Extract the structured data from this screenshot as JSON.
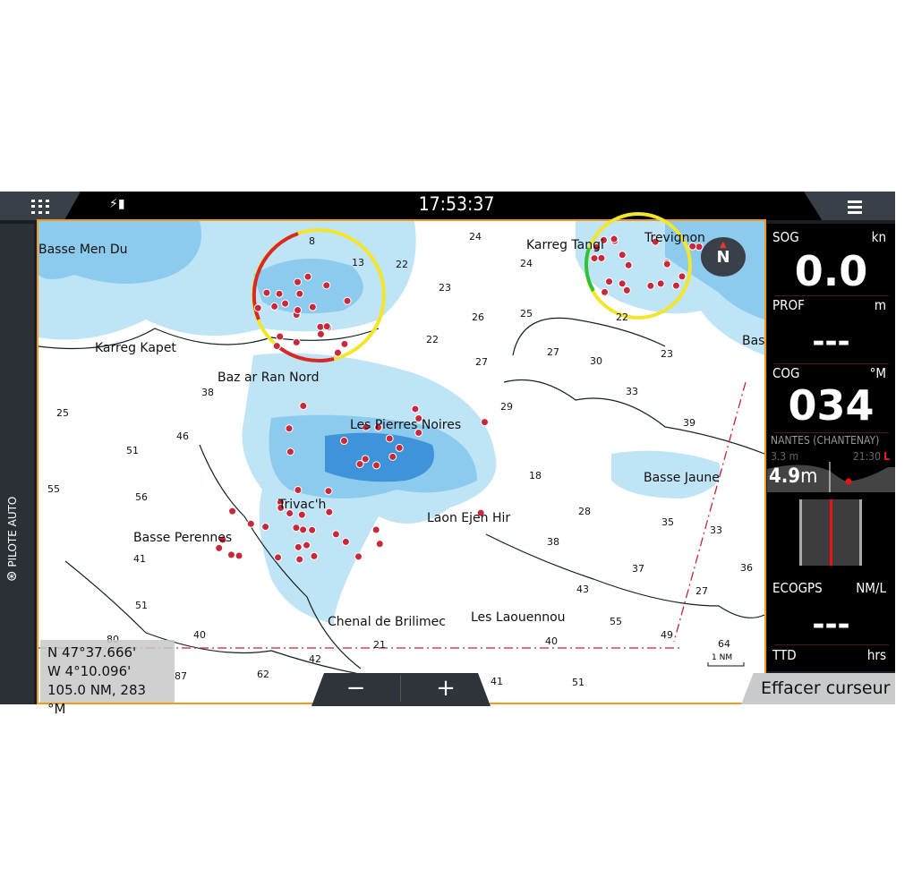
{
  "topbar": {
    "time": "17:53:37",
    "apps_icon": "grid-icon",
    "signal_icon": "satellite-signal-icon",
    "menu_icon": "hamburger-icon"
  },
  "leftpanel": {
    "autopilot_label": "PILOTE AUTO",
    "autopilot_icon": "steering-wheel-icon"
  },
  "map": {
    "compass_label": "N",
    "place_names": [
      "Basse Men Du",
      "Karreg Kapet",
      "Baz ar Ran Nord",
      "Les Pierres Noires",
      "Trivac'h",
      "Laon Ejen Hir",
      "Basse Perennes",
      "Chenal de Brilimec",
      "Les Laouennou",
      "Basse Jaune",
      "Karreg Tangi",
      "Trevignon",
      "Bas"
    ],
    "soundings": [
      "8",
      "13",
      "22",
      "24",
      "24",
      "23",
      "26",
      "25",
      "22",
      "27",
      "27",
      "30",
      "23",
      "33",
      "29",
      "38",
      "46",
      "25",
      "51",
      "55",
      "56",
      "39",
      "18",
      "28",
      "35",
      "33",
      "38",
      "41",
      "37",
      "43",
      "27",
      "36",
      "51",
      "55",
      "40",
      "40",
      "49",
      "42",
      "21",
      "62",
      "87",
      "80",
      "41",
      "51",
      "64",
      "22"
    ],
    "scale_label": "1 NM",
    "cursor": {
      "lat": "N  47°37.666'",
      "lon": "W  4°10.096'",
      "range_bearing": "105.0 NM, 283 °M"
    },
    "zoom_out": "−",
    "zoom_in": "+",
    "colors": {
      "shallow": "#bfe4f6",
      "medium": "#8ccbee",
      "deep": "#3f93d9",
      "border": "#f29a1b"
    }
  },
  "instruments": {
    "sog": {
      "label": "SOG",
      "unit": "kn",
      "value": "0.0"
    },
    "prof": {
      "label": "PROF",
      "unit": "m",
      "value": "---"
    },
    "cog": {
      "label": "COG",
      "unit": "°M",
      "value": "034"
    },
    "tide": {
      "station": "NANTES (CHANTENAY)",
      "next_height": "3.3 m",
      "next_time": "21:30",
      "next_type": "L",
      "current": "4.9",
      "current_unit": "m"
    },
    "ecogps": {
      "label": "ECOGPS",
      "unit": "NM/L",
      "value": "---"
    },
    "ttd": {
      "label": "TTD",
      "unit": "hrs"
    }
  },
  "actions": {
    "clear_cursor": "Effacer curseur"
  }
}
